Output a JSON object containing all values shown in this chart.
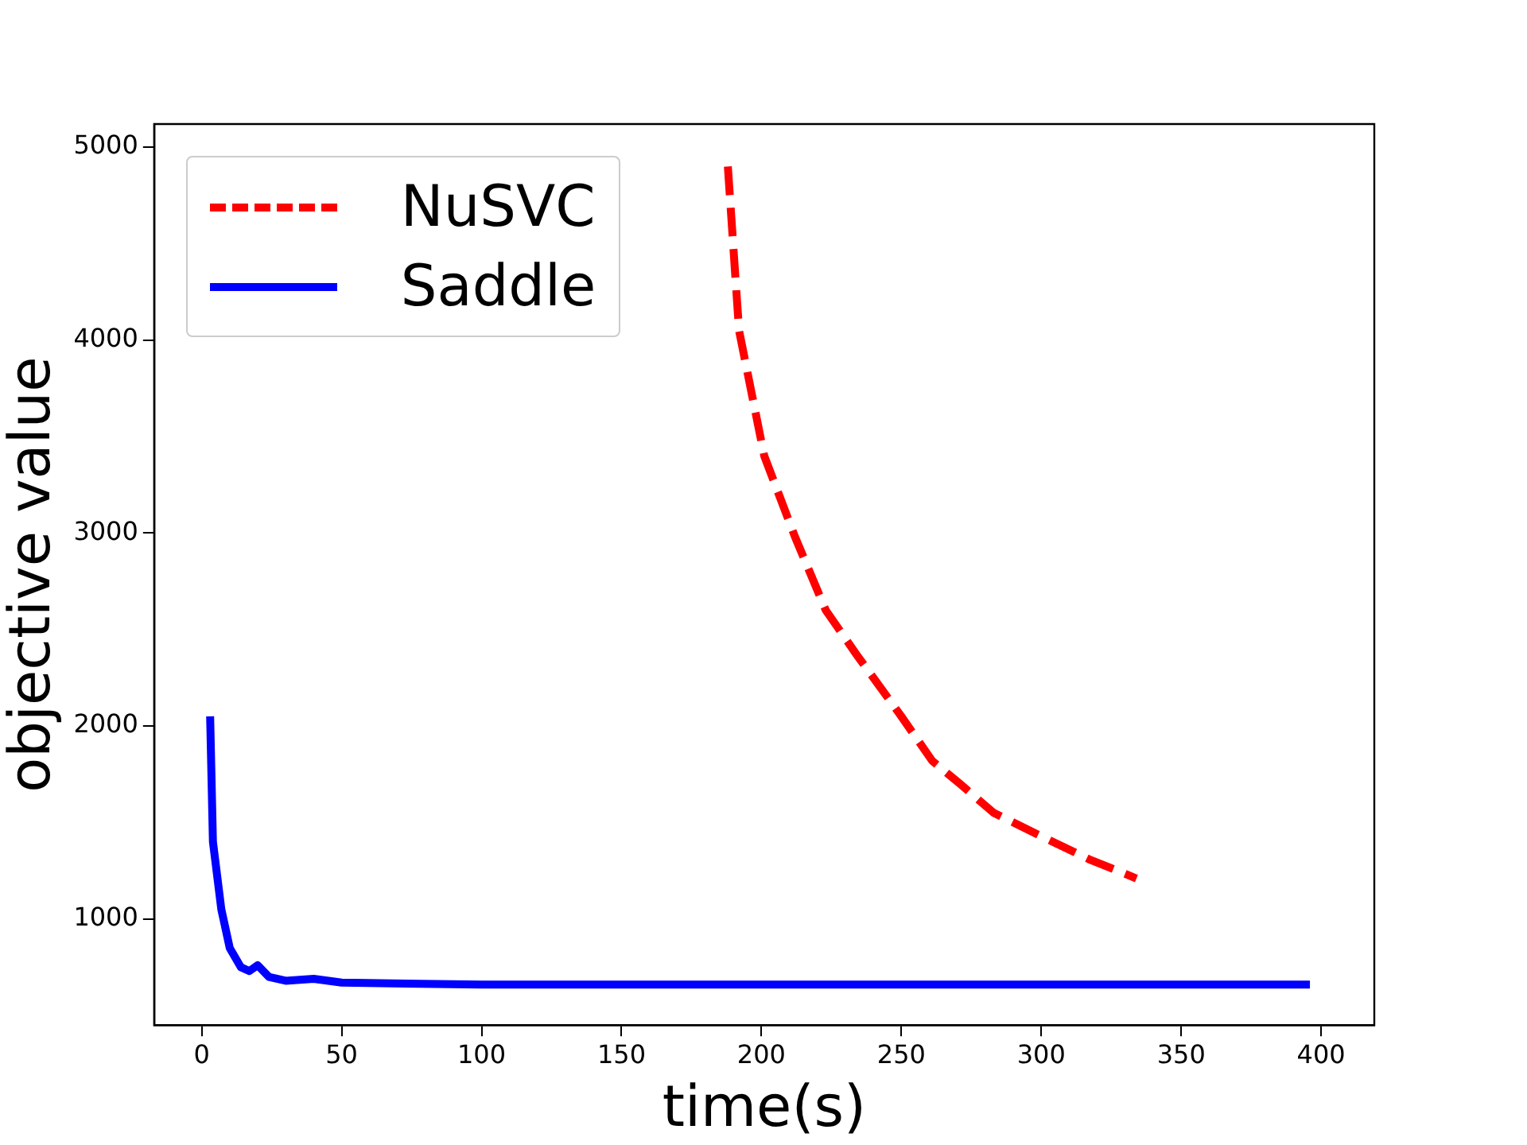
{
  "chart_data": {
    "type": "line",
    "xlabel": "time(s)",
    "ylabel": "objective value",
    "xlim": [
      -17,
      419
    ],
    "ylim": [
      450,
      5120
    ],
    "xticks": [
      0,
      50,
      100,
      150,
      200,
      250,
      300,
      350,
      400
    ],
    "yticks": [
      1000,
      2000,
      3000,
      4000,
      5000
    ],
    "grid": false,
    "legend": "top left",
    "marker": "none",
    "series": [
      {
        "name": "NuSVC",
        "color": "#ff0000",
        "line_style": "dashed",
        "x": [
          188,
          192,
          201,
          212,
          223,
          234,
          250,
          261,
          271,
          283,
          297,
          317,
          334
        ],
        "values": [
          4900,
          4050,
          3400,
          2980,
          2600,
          2370,
          2050,
          1820,
          1700,
          1550,
          1450,
          1310,
          1210
        ]
      },
      {
        "name": "Saddle",
        "color": "#0000ff",
        "line_style": "solid",
        "x": [
          3,
          4,
          7,
          10,
          14,
          17,
          20,
          24,
          30,
          40,
          50,
          100,
          396
        ],
        "values": [
          2050,
          1400,
          1050,
          850,
          750,
          730,
          760,
          700,
          680,
          690,
          670,
          660,
          660
        ]
      }
    ]
  }
}
